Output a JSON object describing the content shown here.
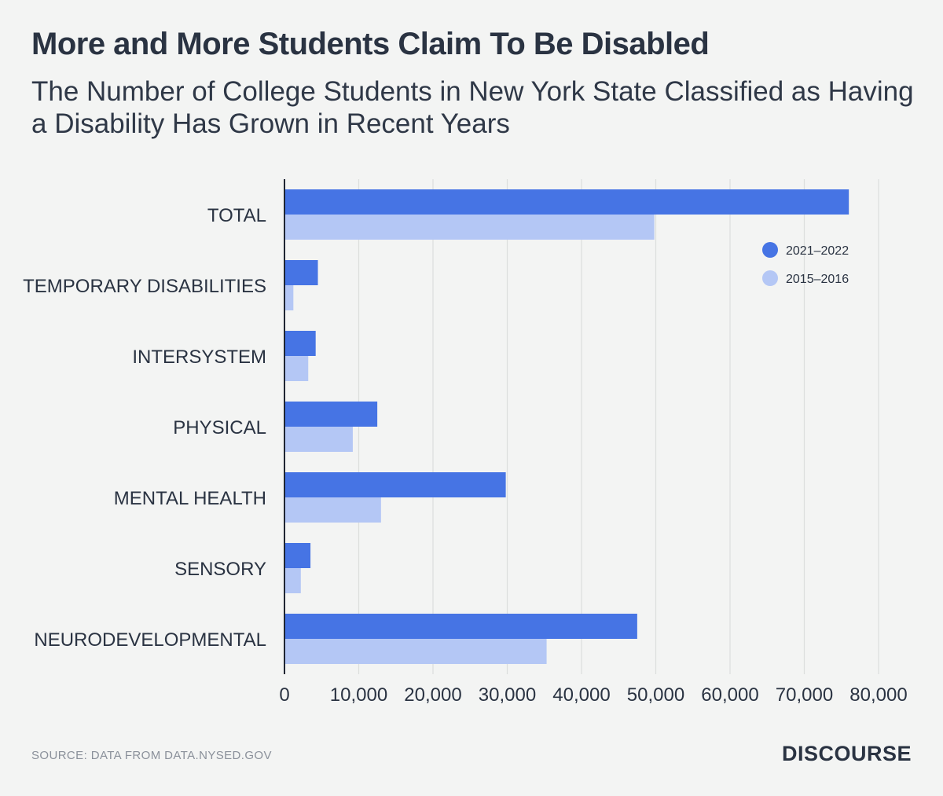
{
  "chart_data": {
    "type": "bar",
    "orientation": "horizontal",
    "title": "More and More Students Claim To Be Disabled",
    "subtitle": "The Number of College Students in New York State Classified as Having a Disability Has Grown in Recent Years",
    "categories": [
      "TOTAL",
      "TEMPORARY DISABILITIES",
      "INTERSYSTEM",
      "PHYSICAL",
      "MENTAL HEALTH",
      "SENSORY",
      "NEURODEVELOPMENTAL"
    ],
    "series": [
      {
        "name": "2021–2022",
        "color": "#4674e4",
        "values": [
          76000,
          4500,
          4200,
          12500,
          29800,
          3500,
          47500
        ]
      },
      {
        "name": "2015–2016",
        "color": "#b4c7f5",
        "values": [
          49800,
          1200,
          3200,
          9200,
          13000,
          2200,
          35300
        ]
      }
    ],
    "xlim": [
      0,
      80000
    ],
    "xticks": [
      0,
      10000,
      20000,
      30000,
      40000,
      50000,
      60000,
      70000,
      80000
    ],
    "xtick_labels": [
      "0",
      "10,000",
      "20,000",
      "30,000",
      "40,000",
      "50,000",
      "60,000",
      "70,000",
      "80,000"
    ],
    "grid": "vertical",
    "legend": "top-right",
    "xlabel": "",
    "ylabel": ""
  },
  "footer": {
    "source": "SOURCE: DATA FROM DATA.NYSED.GOV",
    "brand": "DISCOURSE"
  }
}
